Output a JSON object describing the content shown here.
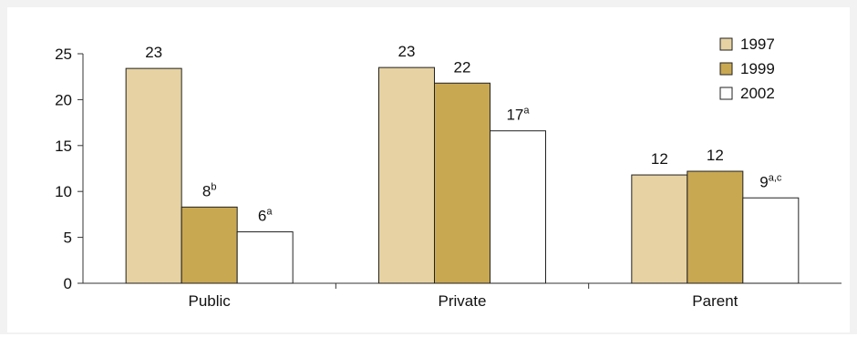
{
  "chart_data": {
    "type": "bar",
    "title": "",
    "xlabel": "",
    "ylabel": "",
    "ylim": [
      0,
      25
    ],
    "yticks": [
      0,
      5,
      10,
      15,
      20,
      25
    ],
    "categories": [
      "Public",
      "Private",
      "Parent"
    ],
    "series": [
      {
        "name": "1997",
        "color": "#e6d2a2",
        "values": [
          23.4,
          23.5,
          11.8
        ],
        "labels": [
          "23",
          "23",
          "12"
        ],
        "superscripts": [
          "",
          "",
          ""
        ]
      },
      {
        "name": "1999",
        "color": "#c9a852",
        "values": [
          8.3,
          21.8,
          12.2
        ],
        "labels": [
          "8",
          "22",
          "12"
        ],
        "superscripts": [
          "b",
          "",
          ""
        ]
      },
      {
        "name": "2002",
        "color": "#ffffff",
        "values": [
          5.6,
          16.6,
          9.3
        ],
        "labels": [
          "6",
          "17",
          "9"
        ],
        "superscripts": [
          "a",
          "a",
          "a,c"
        ]
      }
    ],
    "legend_position": "top-right",
    "grid": false
  },
  "colors": {
    "frame": "#f2f2f2",
    "axis": "#333333",
    "bar_outline": "#222222"
  }
}
